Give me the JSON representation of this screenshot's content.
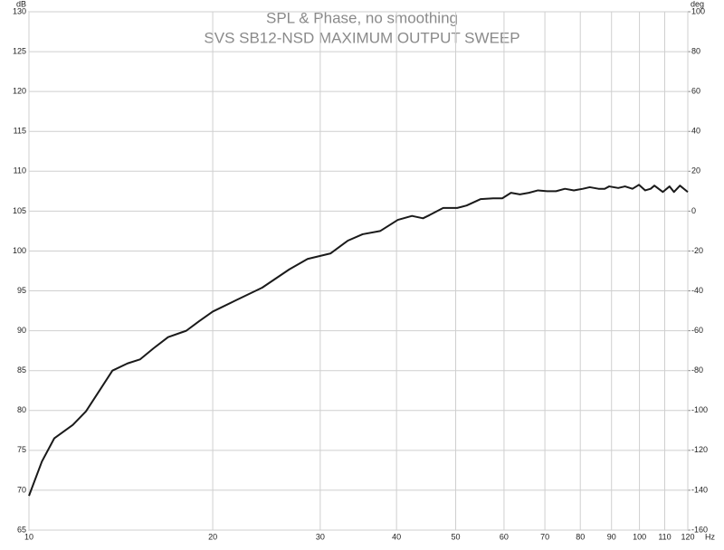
{
  "chart_data": {
    "type": "line",
    "title": "SPL & Phase, no smoothing",
    "subtitle": "SVS SB12-NSD MAXIMUM OUTPUT SWEEP",
    "xlabel": "Hz",
    "ylabel": "dB",
    "y2label": "deg",
    "xscale": "log",
    "grid": true,
    "color": "#1a1a1a",
    "x": [
      10,
      10.5,
      11,
      11.8,
      12.4,
      13.1,
      13.7,
      14.5,
      15.2,
      16,
      16.9,
      18.1,
      19,
      20,
      21.8,
      24.1,
      26.7,
      28.6,
      31.2,
      33.3,
      35.2,
      37.6,
      40.2,
      42.4,
      44.2,
      45.3,
      47.7,
      50.3,
      52.1,
      54.9,
      57.6,
      59.6,
      61.6,
      63.7,
      65.9,
      68.2,
      70.6,
      73,
      75.5,
      78.1,
      80.8,
      82.9,
      85.7,
      87.7,
      89.2,
      92.3,
      94.7,
      97.4,
      99.8,
      102.2,
      104.3,
      105.8,
      109.2,
      112,
      113.9,
      116.5,
      120
    ],
    "values": [
      69.3,
      73.6,
      76.5,
      78.2,
      79.9,
      82.7,
      85,
      85.9,
      86.4,
      87.8,
      89.2,
      90,
      91.2,
      92.4,
      93.8,
      95.4,
      97.7,
      99,
      99.7,
      101.3,
      102.1,
      102.5,
      103.9,
      104.4,
      104.1,
      104.5,
      105.4,
      105.4,
      105.7,
      106.5,
      106.6,
      106.6,
      107.3,
      107.1,
      107.3,
      107.6,
      107.5,
      107.5,
      107.8,
      107.6,
      107.8,
      108,
      107.8,
      107.8,
      108.1,
      107.9,
      108.1,
      107.8,
      108.3,
      107.6,
      107.8,
      108.2,
      107.4,
      108.1,
      107.4,
      108.2,
      107.4
    ],
    "xlim": [
      10,
      120
    ],
    "xticks": [
      10,
      20,
      30,
      40,
      50,
      60,
      70,
      80,
      90,
      100,
      110,
      120
    ],
    "ylim": [
      65,
      130
    ],
    "yticks": [
      65,
      70,
      75,
      80,
      85,
      90,
      95,
      100,
      105,
      110,
      115,
      120,
      125,
      130
    ],
    "y2lim": [
      -160,
      100
    ],
    "y2ticks": [
      -160,
      -140,
      -120,
      -100,
      -80,
      -60,
      -40,
      -20,
      0,
      20,
      40,
      60,
      80,
      100
    ]
  }
}
